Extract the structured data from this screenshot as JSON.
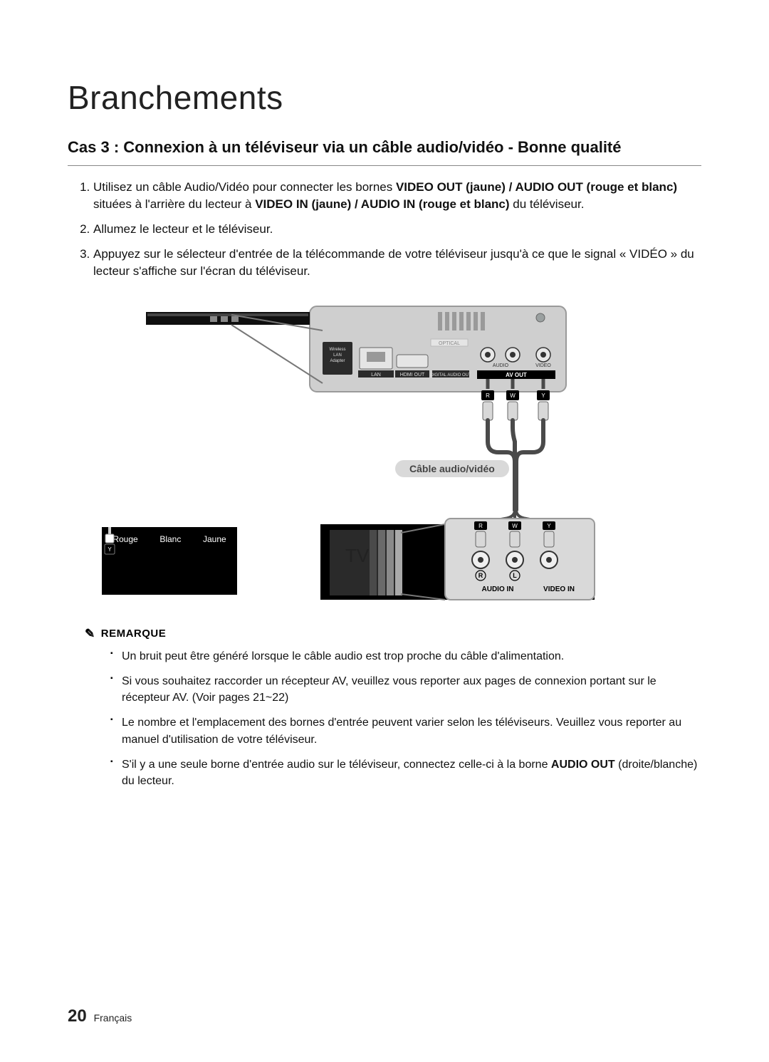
{
  "page": {
    "title": "Branchements",
    "subtitle": "Cas 3 : Connexion à un téléviseur via un câble audio/vidéo - Bonne qualité",
    "page_number": "20",
    "language_label": "Français"
  },
  "steps": [
    {
      "runs": [
        {
          "t": "Utilisez un câble Audio/Vidéo pour connecter les bornes "
        },
        {
          "t": "VIDEO OUT (jaune) / AUDIO OUT (rouge et blanc)",
          "bold": true
        },
        {
          "t": " situées à l'arrière du lecteur à "
        },
        {
          "t": "VIDEO IN (jaune) / AUDIO IN (rouge et blanc)",
          "bold": true
        },
        {
          "t": " du téléviseur."
        }
      ]
    },
    {
      "runs": [
        {
          "t": "Allumez le lecteur et le téléviseur."
        }
      ]
    },
    {
      "runs": [
        {
          "t": "Appuyez sur le sélecteur d'entrée de la télécommande de votre téléviseur jusqu'à ce que le signal « VIDÉO » du lecteur s'affiche sur l'écran du téléviseur."
        }
      ]
    }
  ],
  "diagram": {
    "cable_label": "Câble audio/vidéo",
    "tv_label": "TV",
    "player_panel": {
      "bg": "#cfcfcf",
      "border": "#9a9a9a",
      "slot_labels": [
        "OPTICAL",
        "HDMI OUT",
        "LAN",
        "DIGITAL AUDIO OUT"
      ],
      "usb_label_lines": [
        "Wireless",
        "LAN",
        "Adapter"
      ],
      "av_out_label": "AV OUT",
      "audio_label": "AUDIO",
      "video_label": "VIDEO",
      "screw_color": "#9aa0a0",
      "jack_colors": {
        "R": "#555",
        "W": "#555",
        "Y": "#555"
      }
    },
    "top_plug_row": {
      "labels": [
        "R",
        "W",
        "Y"
      ]
    },
    "tv_panel": {
      "bg": "#d9d9d9",
      "border": "#9a9a9a",
      "audio_in_label": "AUDIO IN",
      "video_in_label": "VIDEO IN",
      "rl_labels": [
        "R",
        "L"
      ],
      "plug_letters": [
        "R",
        "W",
        "Y"
      ]
    }
  },
  "legend": {
    "items": [
      {
        "letter": "R",
        "label": "Rouge"
      },
      {
        "letter": "W",
        "label": "Blanc"
      },
      {
        "letter": "Y",
        "label": "Jaune"
      }
    ]
  },
  "notes": {
    "heading": "REMARQUE",
    "items": [
      [
        {
          "t": "Un bruit peut être généré lorsque le câble audio est trop proche du câble d'alimentation."
        }
      ],
      [
        {
          "t": "Si vous souhaitez raccorder un récepteur AV, veuillez vous reporter aux pages de connexion portant sur le récepteur AV. (Voir pages 21~22)"
        }
      ],
      [
        {
          "t": "Le nombre et l'emplacement des bornes d'entrée peuvent varier selon les téléviseurs. Veuillez vous reporter au manuel d'utilisation de votre téléviseur."
        }
      ],
      [
        {
          "t": "S'il y a une seule borne d'entrée audio sur le téléviseur, connectez celle-ci à la borne "
        },
        {
          "t": "AUDIO OUT",
          "bold": true
        },
        {
          "t": " (droite/blanche) du lecteur."
        }
      ]
    ]
  },
  "style": {
    "title_color": "#222",
    "text_color": "#111",
    "pill_bg": "#d9d9d9",
    "pill_fg": "#444",
    "diagram_wire": "#4a4a4a",
    "diagram_wire_width": 2,
    "legend_bg": "#000000",
    "legend_fg": "#ffffff"
  }
}
